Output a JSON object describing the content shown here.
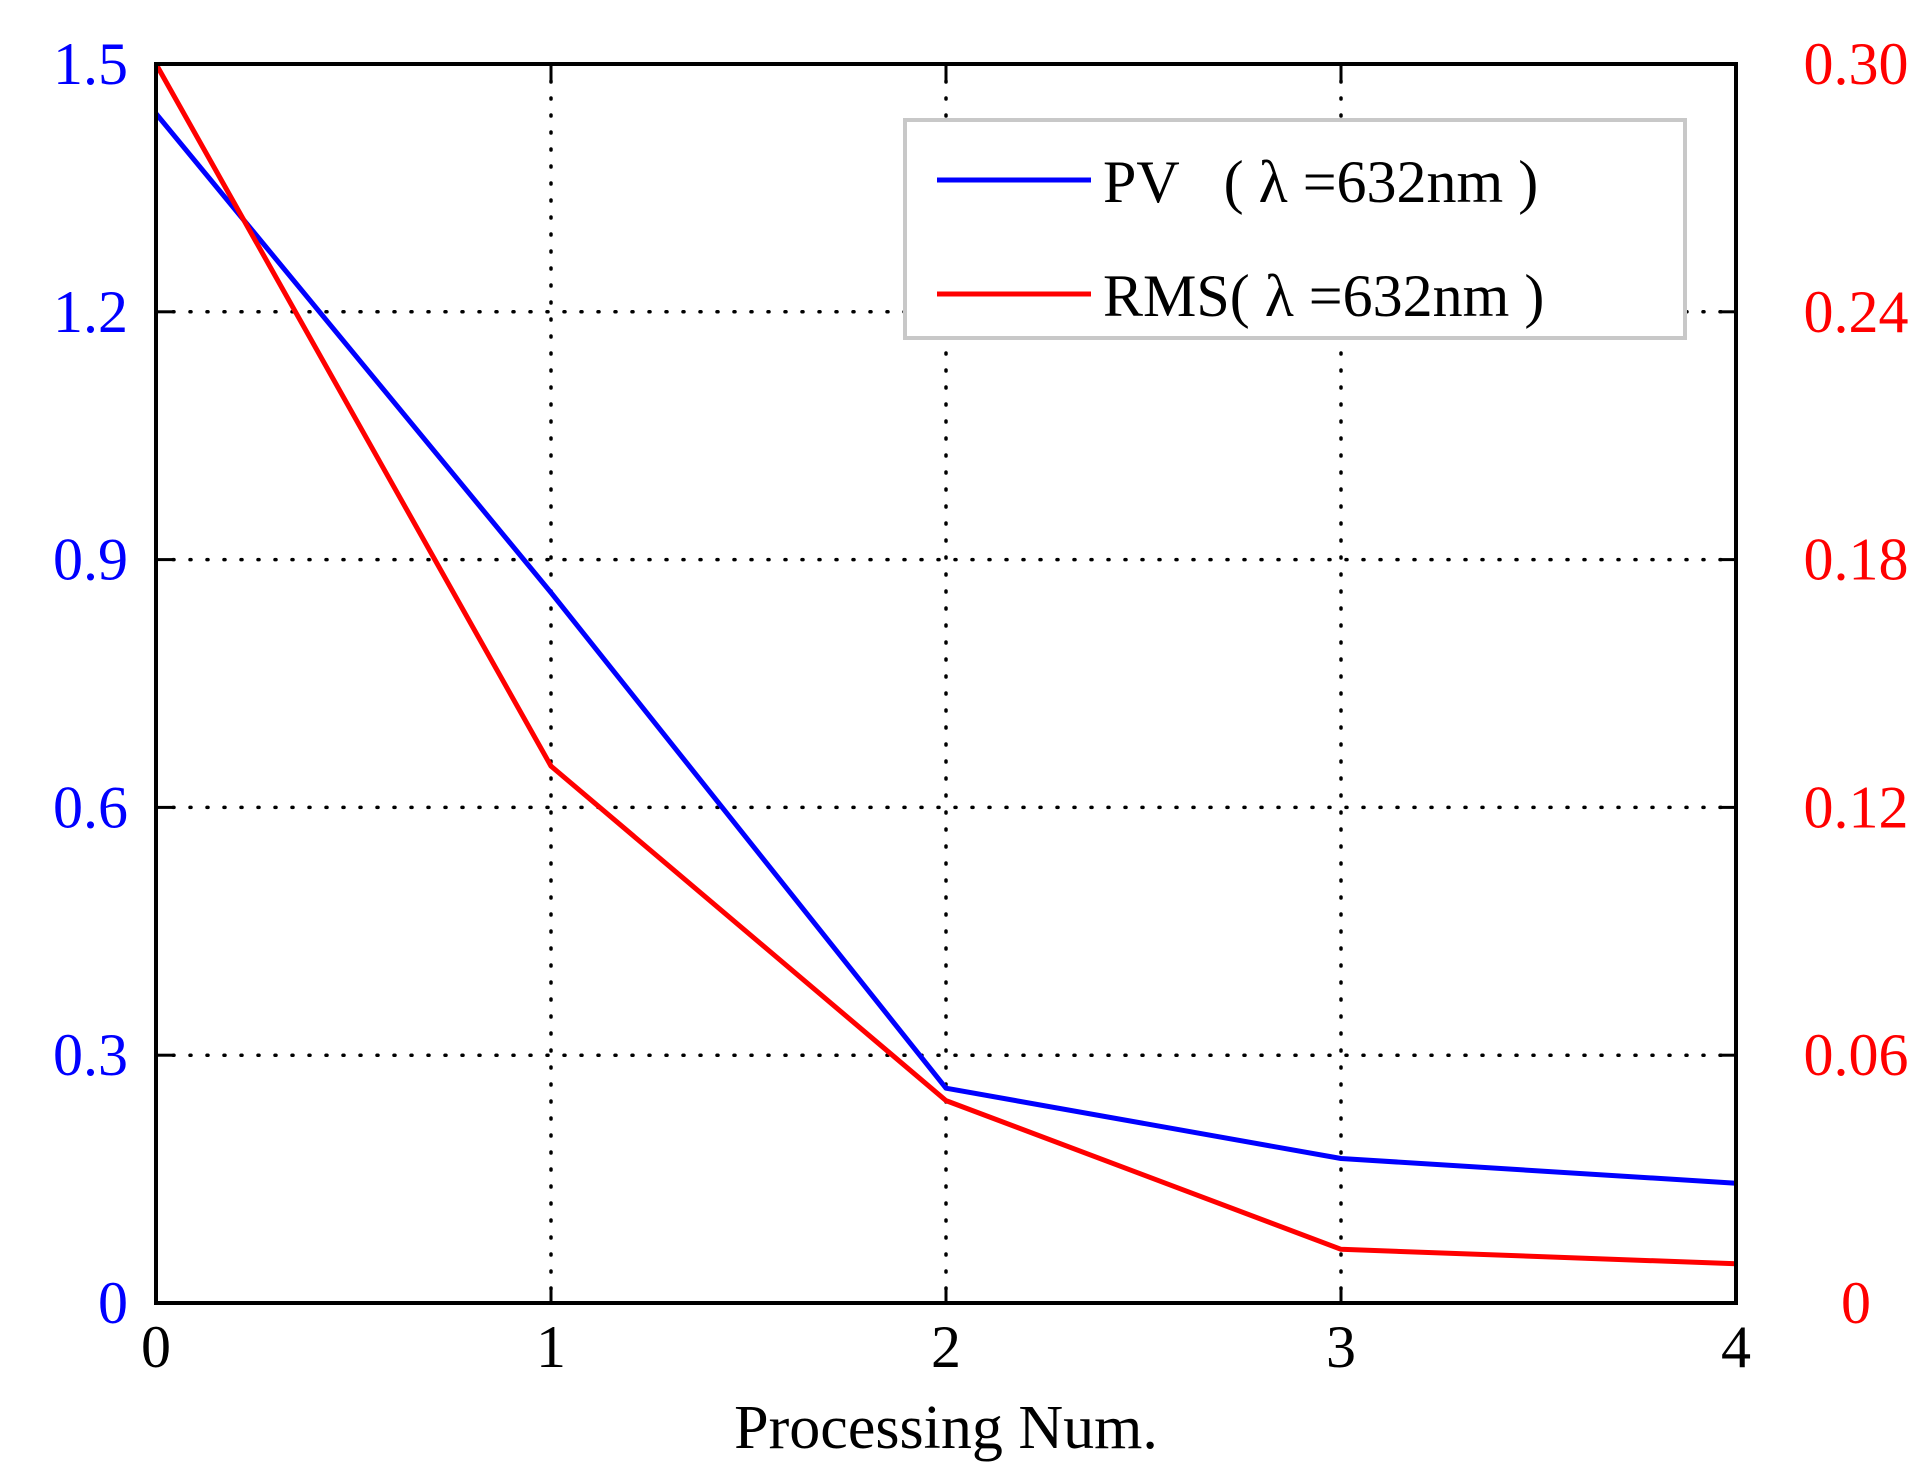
{
  "chart_data": {
    "type": "line",
    "title": "",
    "xlabel": "Processing Num.",
    "ylabel_left": "",
    "ylabel_right": "",
    "x": [
      0,
      1,
      2,
      3,
      4
    ],
    "xlim": [
      0,
      4
    ],
    "x_ticks": [
      "0",
      "1",
      "2",
      "3",
      "4"
    ],
    "ylim_left": [
      0,
      1.5
    ],
    "y_ticks_left": [
      "0",
      "0.3",
      "0.6",
      "0.9",
      "1.2",
      "1.5"
    ],
    "y_tick_values_left": [
      0,
      0.3,
      0.6,
      0.9,
      1.2,
      1.5
    ],
    "ylim_right": [
      0,
      0.3
    ],
    "y_ticks_right": [
      "0",
      "0.06",
      "0.12",
      "0.18",
      "0.24",
      "0.30"
    ],
    "y_tick_values_right": [
      0,
      0.06,
      0.12,
      0.18,
      0.24,
      0.3
    ],
    "grid": "dotted",
    "legend_position": "top-right",
    "series": [
      {
        "name": "PV (λ =632nm)",
        "legend_label": "PV   ( λ =632nm )",
        "axis": "left",
        "color": "#0000ff",
        "values": [
          1.44,
          0.86,
          0.26,
          0.175,
          0.145
        ]
      },
      {
        "name": "RMS(λ =632nm)",
        "legend_label": "RMS( λ =632nm )",
        "axis": "right",
        "color": "#ff0000",
        "values": [
          0.3,
          0.13,
          0.049,
          0.013,
          0.0095
        ]
      }
    ],
    "colors": {
      "left_axis": "#0000ff",
      "right_axis": "#ff0000",
      "axis_line": "#000000",
      "legend_border": "#c8c8c8"
    }
  }
}
